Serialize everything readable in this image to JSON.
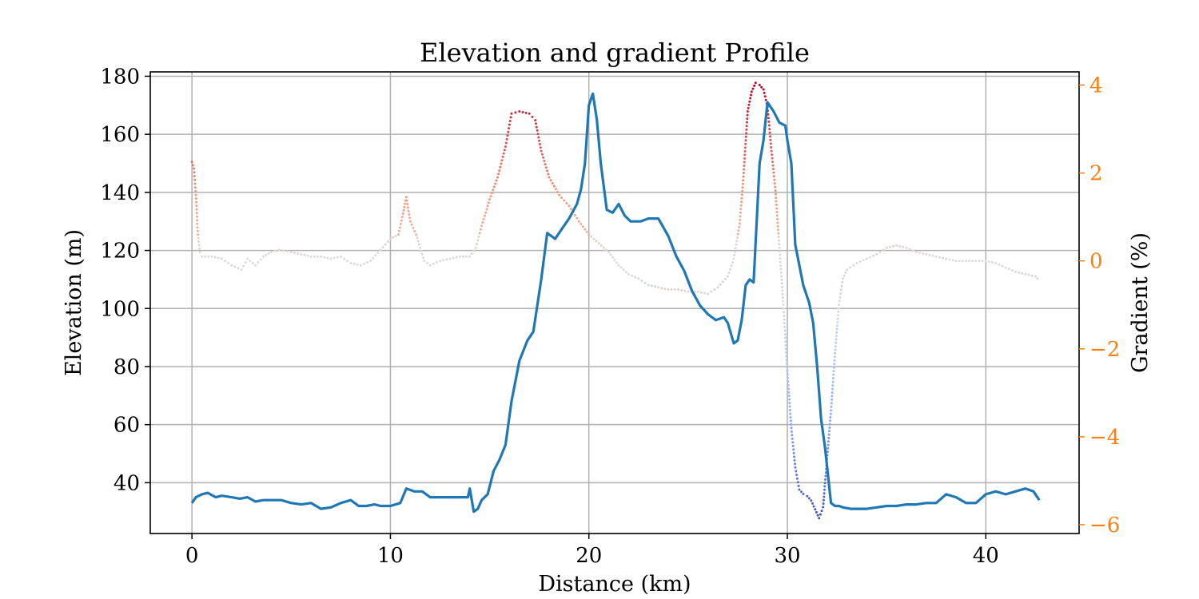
{
  "chart_data": {
    "type": "line",
    "title": "Elevation and gradient Profile",
    "xlabel": "Distance (km)",
    "ylabel": "Elevation (m)",
    "y2label": "Gradient (%)",
    "xlim": [
      -2.1,
      44.7
    ],
    "ylim": [
      22.5,
      181.5
    ],
    "y2lim": [
      -6.2,
      4.3
    ],
    "xticks": [
      0,
      10,
      20,
      30,
      40
    ],
    "yticks": [
      40,
      60,
      80,
      100,
      120,
      140,
      160,
      180
    ],
    "y2ticks": [
      -6,
      -4,
      -2,
      0,
      2,
      4
    ],
    "grid": true,
    "right_axis_color": "#ff7f0e",
    "elevation_color": "#1f77b4",
    "gradient_colormap": "coolwarm",
    "series": [
      {
        "axis": "left",
        "style": "line",
        "x": [
          0,
          0.2,
          0.5,
          0.8,
          1.2,
          1.5,
          2.0,
          2.4,
          2.8,
          3.2,
          3.6,
          4.0,
          4.5,
          5.0,
          5.5,
          6.0,
          6.5,
          7.0,
          7.5,
          8.0,
          8.4,
          8.8,
          9.2,
          9.5,
          10.0,
          10.5,
          10.8,
          11.2,
          11.6,
          12.0,
          12.5,
          13.0,
          13.5,
          13.9,
          14.0,
          14.2,
          14.4,
          14.6,
          14.9,
          15.2,
          15.5,
          15.8,
          16.1,
          16.5,
          16.9,
          17.2,
          17.6,
          17.9,
          18.3,
          18.7,
          19.0,
          19.4,
          19.6,
          19.8,
          20.0,
          20.2,
          20.4,
          20.6,
          20.9,
          21.2,
          21.5,
          21.8,
          22.1,
          22.6,
          23.0,
          23.5,
          24.0,
          24.4,
          24.8,
          25.2,
          25.6,
          26.0,
          26.4,
          26.8,
          27.0,
          27.3,
          27.5,
          27.7,
          27.9,
          28.1,
          28.3,
          28.6,
          28.8,
          29.0,
          29.3,
          29.6,
          29.9,
          30.0,
          30.2,
          30.4,
          30.6,
          30.8,
          31.1,
          31.3,
          31.5,
          31.7,
          31.9,
          32.2,
          32.4,
          32.6,
          32.8,
          33.2,
          33.6,
          34.0,
          34.5,
          35.0,
          35.5,
          36.0,
          36.5,
          37.0,
          37.5,
          38.0,
          38.5,
          39.0,
          39.5,
          40.0,
          40.5,
          41.0,
          41.5,
          42.0,
          42.4,
          42.7
        ],
        "values": [
          33,
          35,
          36,
          36.5,
          35,
          35.5,
          35,
          34.5,
          35,
          33.5,
          34,
          34,
          34,
          33,
          32.5,
          33,
          31,
          31.5,
          33,
          34,
          32,
          32,
          32.5,
          32,
          32,
          33,
          38,
          37,
          37,
          35,
          35,
          35,
          35,
          35,
          38,
          30,
          31,
          34,
          36,
          44,
          48,
          53,
          68,
          82,
          89,
          92,
          110,
          126,
          124,
          128,
          131,
          136,
          141,
          150,
          170,
          174,
          165,
          150,
          134,
          133,
          136,
          132,
          130,
          130,
          131,
          131,
          125,
          118,
          113,
          106,
          101,
          98,
          96,
          97,
          95,
          88,
          89,
          96,
          108,
          110,
          109,
          150,
          158,
          171,
          168,
          164,
          163,
          158,
          150,
          122,
          115,
          108,
          102,
          95,
          80,
          62,
          52,
          33,
          32,
          32,
          31.5,
          31,
          31,
          31,
          31.5,
          32,
          32,
          32.5,
          32.5,
          33,
          33,
          36,
          35,
          33,
          33,
          36,
          37,
          36,
          37,
          38,
          37,
          34
        ]
      },
      {
        "axis": "right",
        "style": "dots",
        "x": [
          0,
          0.1,
          0.2,
          0.3,
          0.4,
          0.5,
          1.0,
          1.5,
          2.0,
          2.5,
          2.8,
          3.2,
          3.6,
          4.0,
          4.4,
          5.0,
          5.5,
          6.0,
          6.5,
          7.0,
          7.5,
          8.0,
          8.5,
          9.0,
          9.5,
          10.0,
          10.4,
          10.6,
          10.8,
          11.0,
          11.3,
          11.7,
          12.0,
          12.5,
          13.0,
          13.5,
          14.0,
          14.3,
          14.6,
          15.0,
          15.4,
          15.8,
          16.1,
          16.5,
          17.0,
          17.3,
          17.6,
          18.0,
          18.5,
          19.0,
          19.5,
          20.0,
          20.5,
          21.0,
          21.5,
          22.0,
          22.5,
          23.0,
          23.5,
          24.0,
          24.5,
          25.0,
          25.5,
          26.0,
          26.5,
          27.0,
          27.3,
          27.6,
          27.8,
          28.0,
          28.2,
          28.4,
          28.6,
          28.8,
          29.0,
          29.2,
          29.4,
          29.6,
          29.8,
          30.0,
          30.2,
          30.4,
          30.6,
          30.8,
          31.0,
          31.2,
          31.4,
          31.6,
          31.8,
          32.0,
          32.2,
          32.4,
          32.6,
          32.8,
          33.0,
          33.5,
          34.0,
          34.5,
          35.0,
          35.5,
          36.0,
          36.5,
          37.0,
          37.5,
          38.0,
          38.5,
          39.0,
          39.5,
          40.0,
          40.5,
          41.0,
          41.5,
          42.0,
          42.5,
          42.7
        ],
        "values": [
          2.25,
          2.1,
          1.5,
          0.6,
          0.2,
          0.1,
          0.1,
          0.05,
          -0.1,
          -0.2,
          0.05,
          -0.1,
          0.1,
          0.2,
          0.25,
          0.2,
          0.15,
          0.1,
          0.1,
          0.05,
          0.1,
          -0.05,
          -0.1,
          0.0,
          0.25,
          0.5,
          0.6,
          1.0,
          1.45,
          0.9,
          0.6,
          0.0,
          -0.1,
          0.0,
          0.05,
          0.1,
          0.1,
          0.3,
          0.8,
          1.4,
          1.9,
          2.6,
          3.35,
          3.4,
          3.35,
          3.2,
          2.5,
          1.9,
          1.5,
          1.25,
          0.9,
          0.6,
          0.4,
          0.2,
          -0.1,
          -0.3,
          -0.4,
          -0.55,
          -0.6,
          -0.65,
          -0.65,
          -0.7,
          -0.7,
          -0.75,
          -0.6,
          -0.35,
          0.05,
          0.85,
          2.0,
          3.4,
          3.85,
          4.05,
          4.0,
          3.9,
          3.5,
          2.5,
          1.6,
          0.3,
          -1.0,
          -2.5,
          -3.8,
          -4.7,
          -5.2,
          -5.3,
          -5.35,
          -5.45,
          -5.65,
          -5.85,
          -5.6,
          -4.5,
          -3.4,
          -2.1,
          -1.0,
          -0.4,
          -0.2,
          -0.05,
          0.05,
          0.15,
          0.3,
          0.35,
          0.3,
          0.2,
          0.15,
          0.1,
          0.05,
          0.0,
          0.0,
          0.0,
          0.0,
          -0.05,
          -0.15,
          -0.25,
          -0.3,
          -0.35,
          -0.45
        ]
      }
    ]
  }
}
